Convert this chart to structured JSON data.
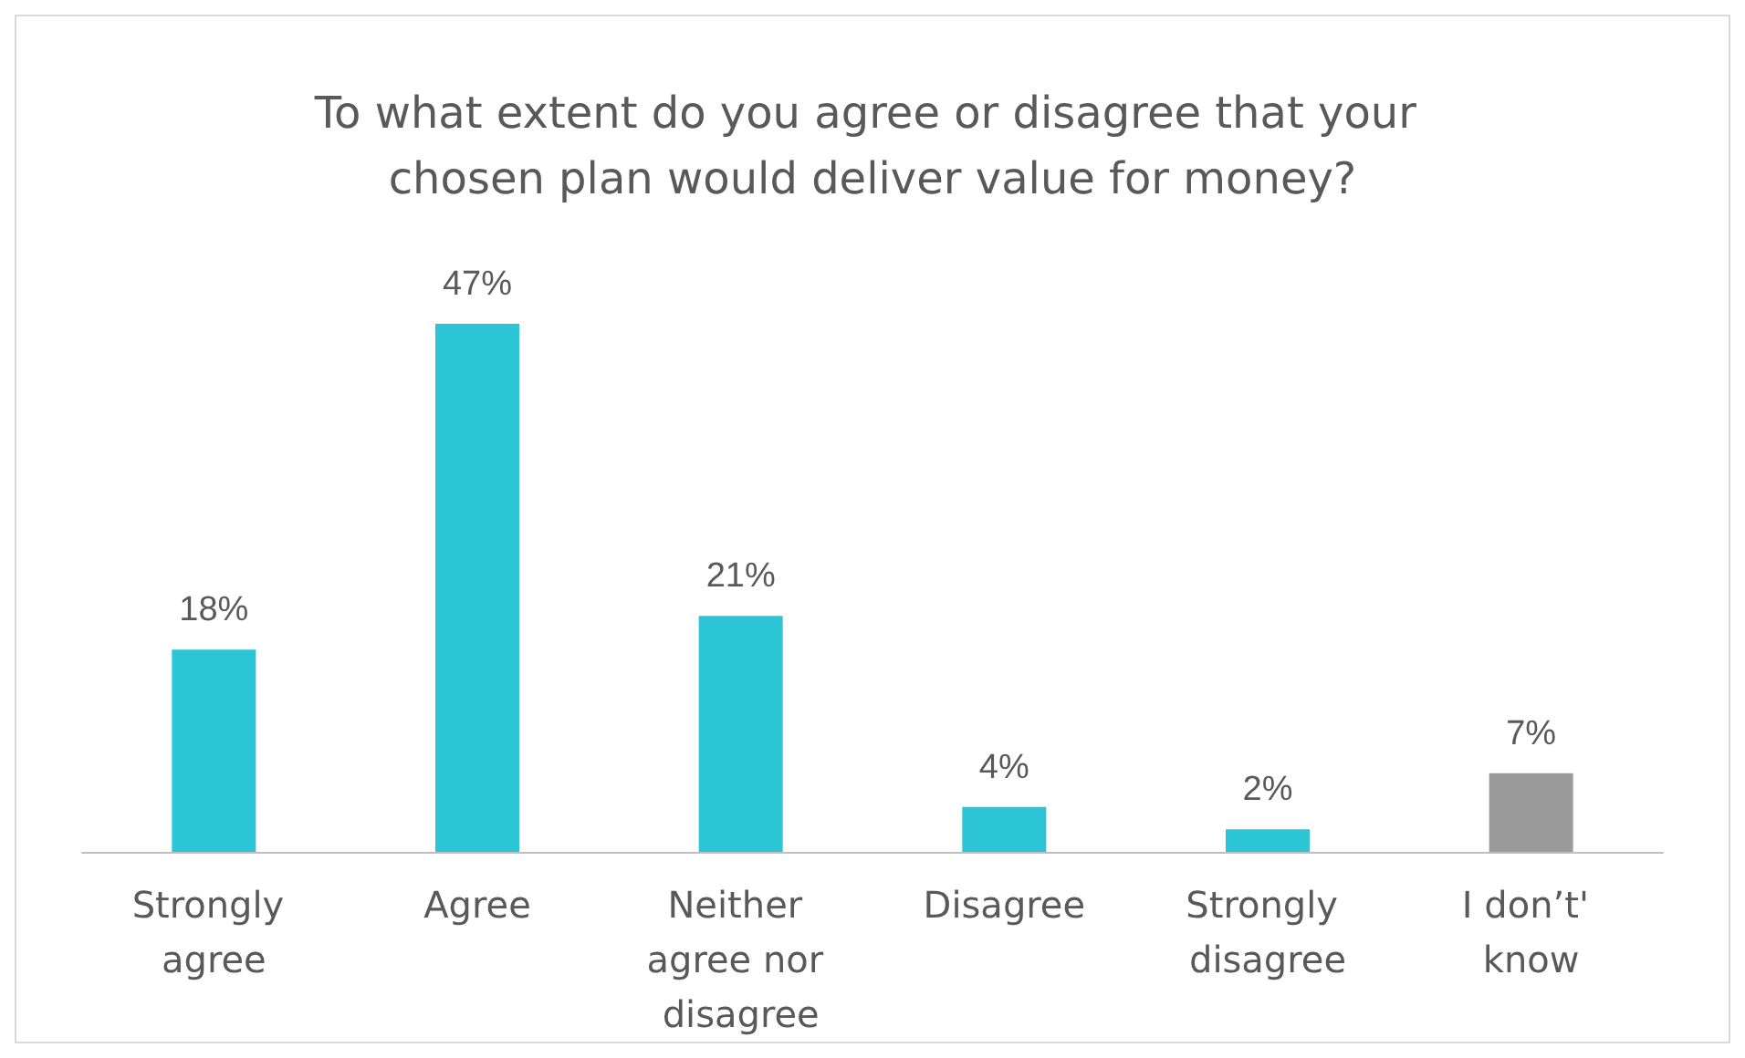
{
  "chart_data": {
    "type": "bar",
    "title": "To what extent do you agree or disagree that your chosen plan would deliver value for money?",
    "categories": [
      "Strongly agree",
      "Agree",
      "Neither agree nor disagree",
      "Disagree",
      "Strongly disagree",
      "I don’t' know"
    ],
    "values": [
      18,
      47,
      21,
      4,
      2,
      7
    ],
    "colors": [
      "#2bc5d6",
      "#2bc5d6",
      "#2bc5d6",
      "#2bc5d6",
      "#2bc5d6",
      "#9b9b9b"
    ],
    "value_labels": [
      "18%",
      "47%",
      "21%",
      "4%",
      "2%",
      "7%"
    ]
  }
}
